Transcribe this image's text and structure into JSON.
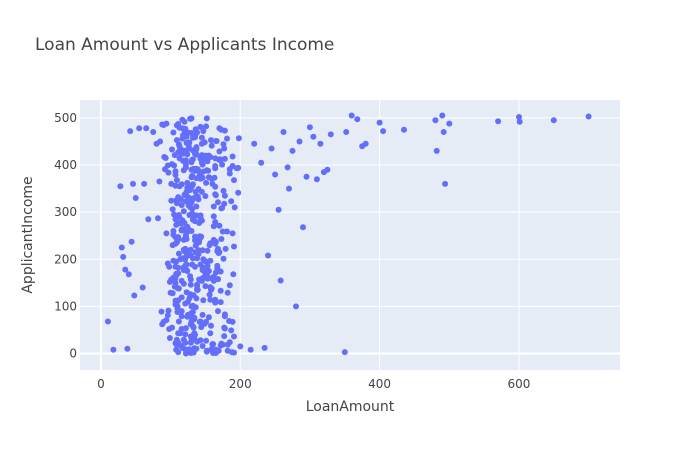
{
  "chart_data": {
    "type": "scatter",
    "title": "Loan Amount vs Applicants Income",
    "xlabel": "LoanAmount",
    "ylabel": "ApplicantIncome",
    "xlim": [
      -30,
      745
    ],
    "ylim": [
      -35,
      538
    ],
    "xticks": [
      0,
      200,
      400,
      600
    ],
    "yticks": [
      0,
      100,
      200,
      300,
      400,
      500
    ],
    "grid": true,
    "marker_color": "#636efa",
    "plot_background": "#e5ecf6",
    "grid_color": "#ffffff",
    "outlier_points": [
      [
        10,
        68
      ],
      [
        18,
        8
      ],
      [
        28,
        355
      ],
      [
        30,
        225
      ],
      [
        32,
        205
      ],
      [
        35,
        178
      ],
      [
        38,
        10
      ],
      [
        40,
        168
      ],
      [
        42,
        472
      ],
      [
        44,
        237
      ],
      [
        46,
        360
      ],
      [
        48,
        123
      ],
      [
        50,
        330
      ],
      [
        55,
        478
      ],
      [
        60,
        140
      ],
      [
        62,
        360
      ],
      [
        65,
        478
      ],
      [
        68,
        285
      ],
      [
        75,
        470
      ],
      [
        80,
        445
      ],
      [
        85,
        450
      ],
      [
        90,
        485
      ],
      [
        200,
        15
      ],
      [
        215,
        8
      ],
      [
        220,
        445
      ],
      [
        230,
        405
      ],
      [
        235,
        12
      ],
      [
        240,
        208
      ],
      [
        245,
        435
      ],
      [
        250,
        380
      ],
      [
        255,
        305
      ],
      [
        258,
        155
      ],
      [
        262,
        470
      ],
      [
        268,
        395
      ],
      [
        270,
        350
      ],
      [
        275,
        430
      ],
      [
        280,
        100
      ],
      [
        285,
        450
      ],
      [
        290,
        268
      ],
      [
        295,
        375
      ],
      [
        300,
        480
      ],
      [
        305,
        460
      ],
      [
        310,
        370
      ],
      [
        315,
        445
      ],
      [
        320,
        385
      ],
      [
        325,
        390
      ],
      [
        330,
        465
      ],
      [
        350,
        3
      ],
      [
        352,
        470
      ],
      [
        360,
        505
      ],
      [
        368,
        497
      ],
      [
        375,
        440
      ],
      [
        380,
        445
      ],
      [
        400,
        490
      ],
      [
        405,
        472
      ],
      [
        435,
        475
      ],
      [
        480,
        495
      ],
      [
        482,
        430
      ],
      [
        490,
        505
      ],
      [
        492,
        470
      ],
      [
        494,
        360
      ],
      [
        500,
        488
      ],
      [
        570,
        493
      ],
      [
        600,
        502
      ],
      [
        601,
        492
      ],
      [
        650,
        495
      ],
      [
        700,
        503
      ]
    ],
    "dense_clusters": [
      {
        "x_center": 125,
        "x_spread": 30,
        "y_min": 0,
        "y_max": 500,
        "count": 360
      },
      {
        "x_center": 170,
        "x_spread": 25,
        "y_min": 0,
        "y_max": 480,
        "count": 120
      }
    ]
  }
}
